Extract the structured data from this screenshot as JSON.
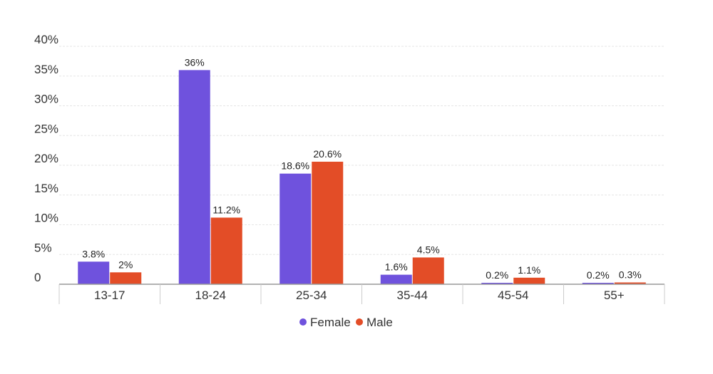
{
  "chart_data": {
    "type": "bar",
    "categories": [
      "13-17",
      "18-24",
      "25-34",
      "35-44",
      "45-54",
      "55+"
    ],
    "series": [
      {
        "name": "Female",
        "color": "#6F52DD",
        "values": [
          3.8,
          36,
          18.6,
          1.6,
          0.2,
          0.2
        ],
        "labels": [
          "3.8%",
          "36%",
          "18.6%",
          "1.6%",
          "0.2%",
          "0.2%"
        ]
      },
      {
        "name": "Male",
        "color": "#E34D27",
        "values": [
          2,
          11.2,
          20.6,
          4.5,
          1.1,
          0.3
        ],
        "labels": [
          "2%",
          "11.2%",
          "20.6%",
          "4.5%",
          "1.1%",
          "0.3%"
        ]
      }
    ],
    "ylim": [
      0,
      40
    ],
    "yticks": [
      0,
      5,
      10,
      15,
      20,
      25,
      30,
      35,
      40
    ],
    "ytick_labels": [
      "0",
      "5%",
      "10%",
      "15%",
      "20%",
      "25%",
      "30%",
      "35%",
      "40%"
    ],
    "grid": true,
    "legend_position": "bottom-center"
  }
}
